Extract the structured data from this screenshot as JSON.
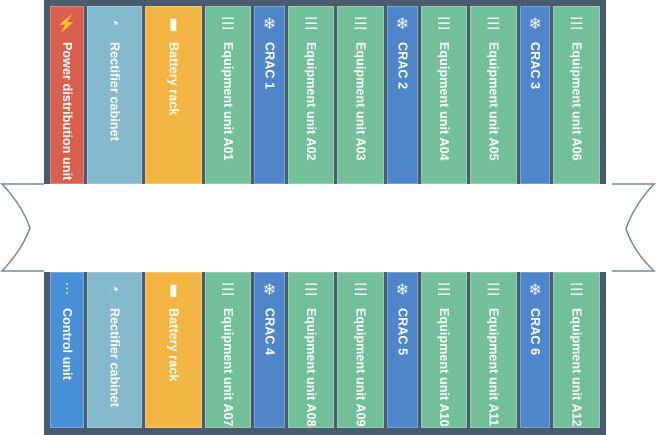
{
  "colors": {
    "frame": "#4a5a6f",
    "power": "#d9604f",
    "rectifier": "#85b9cd",
    "battery": "#f2b443",
    "equipment": "#72bf9a",
    "crac": "#4f86c9",
    "control": "#4a90d6"
  },
  "top_row": [
    {
      "label": "Power distribution unit",
      "type": "power",
      "icon": "lightning-icon"
    },
    {
      "label": "Rectifier cabinet",
      "type": "rectifier",
      "icon": "gauge-icon"
    },
    {
      "label": "Battery rack",
      "type": "battery",
      "icon": "battery-icon"
    },
    {
      "label": "Equipment unit A01",
      "type": "equipment",
      "icon": "database-icon"
    },
    {
      "label": "CRAC 1",
      "type": "crac",
      "icon": "snowflake-icon"
    },
    {
      "label": "Equipment unit A02",
      "type": "equipment",
      "icon": "database-icon"
    },
    {
      "label": "Equipment unit A03",
      "type": "equipment",
      "icon": "database-icon"
    },
    {
      "label": "CRAC 2",
      "type": "crac",
      "icon": "snowflake-icon"
    },
    {
      "label": "Equipment unit A04",
      "type": "equipment",
      "icon": "database-icon"
    },
    {
      "label": "Equipment unit A05",
      "type": "equipment",
      "icon": "database-icon"
    },
    {
      "label": "CRAC 3",
      "type": "crac",
      "icon": "snowflake-icon"
    },
    {
      "label": "Equipment unit A06",
      "type": "equipment",
      "icon": "database-icon"
    }
  ],
  "bottom_row": [
    {
      "label": "Control unit",
      "type": "control",
      "icon": "sliders-icon"
    },
    {
      "label": "Rectifier cabinet",
      "type": "rectifier",
      "icon": "gauge-icon"
    },
    {
      "label": "Battery rack",
      "type": "battery",
      "icon": "battery-icon"
    },
    {
      "label": "Equipment unit A07",
      "type": "equipment",
      "icon": "database-icon"
    },
    {
      "label": "CRAC 4",
      "type": "crac",
      "icon": "snowflake-icon"
    },
    {
      "label": "Equipment unit A08",
      "type": "equipment",
      "icon": "database-icon"
    },
    {
      "label": "Equipment unit A09",
      "type": "equipment",
      "icon": "database-icon"
    },
    {
      "label": "CRAC 5",
      "type": "crac",
      "icon": "snowflake-icon"
    },
    {
      "label": "Equipment unit A10",
      "type": "equipment",
      "icon": "database-icon"
    },
    {
      "label": "Equipment unit A11",
      "type": "equipment",
      "icon": "database-icon"
    },
    {
      "label": "CRAC 6",
      "type": "crac",
      "icon": "snowflake-icon"
    },
    {
      "label": "Equipment unit A12",
      "type": "equipment",
      "icon": "database-icon"
    }
  ]
}
